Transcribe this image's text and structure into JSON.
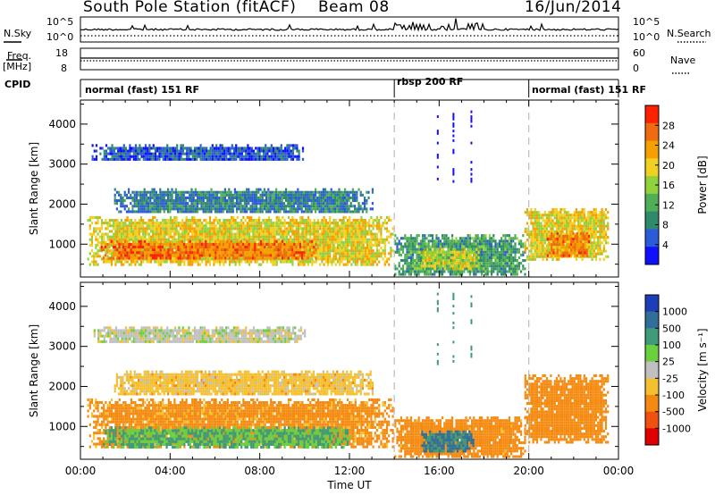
{
  "header": {
    "station": "South Pole Station (fitACF)",
    "beam": "Beam 08",
    "date": "16/Jun/2014"
  },
  "side_labels": {
    "nsky": "N.Sky",
    "nsearch": "N.Search",
    "freq": "Freq.",
    "freq_unit": "[MHz]",
    "nave": "Nave",
    "cpid": "CPID"
  },
  "noise_panel": {
    "left_ticks": [
      "10^5",
      "10^0"
    ],
    "right_ticks": [
      "10^5",
      "10^0"
    ]
  },
  "freq_panel": {
    "left_ticks": [
      "18",
      "8"
    ],
    "right_ticks": [
      "60",
      "0"
    ]
  },
  "cpid_panel": {
    "modes": [
      {
        "label": "normal (fast) 151 RF",
        "start_hour": 0,
        "end_hour": 14
      },
      {
        "label": "rbsp 200 RF",
        "start_hour": 14,
        "end_hour": 20
      },
      {
        "label": "normal (fast) 151 RF",
        "start_hour": 20,
        "end_hour": 24
      }
    ]
  },
  "chart_data": [
    {
      "type": "heatmap",
      "name": "power",
      "ylabel": "Slant Range [km]",
      "xlim": [
        0,
        24
      ],
      "ylim": [
        180,
        4600
      ],
      "yticks": [
        "1000",
        "2000",
        "3000",
        "4000"
      ],
      "colorbar": {
        "label": "Power [dB]",
        "ticks": [
          "28",
          "24",
          "20",
          "16",
          "12",
          "8",
          "4"
        ],
        "range": [
          0,
          32
        ],
        "colors": [
          "#1010ff",
          "#2a5bd8",
          "#2f8a6c",
          "#4fae57",
          "#8fd23c",
          "#f0d020",
          "#f5a000",
          "#f06a10",
          "#ff2000"
        ]
      },
      "echo_regions": [
        {
          "t0": 0.3,
          "t1": 13.9,
          "r0": 500,
          "r1": 1700,
          "level": 20
        },
        {
          "t0": 0.9,
          "t1": 10.5,
          "r0": 650,
          "r1": 1100,
          "level": 27
        },
        {
          "t0": 14.0,
          "t1": 19.8,
          "r0": 250,
          "r1": 1250,
          "level": 10
        },
        {
          "t0": 15.0,
          "t1": 17.8,
          "r0": 400,
          "r1": 900,
          "level": 18
        },
        {
          "t0": 19.8,
          "t1": 23.5,
          "r0": 600,
          "r1": 1900,
          "level": 20
        },
        {
          "t0": 20.8,
          "t1": 22.7,
          "r0": 700,
          "r1": 1300,
          "level": 26
        },
        {
          "t0": 1.5,
          "t1": 13.0,
          "r0": 1800,
          "r1": 2400,
          "level": 7
        },
        {
          "t0": 0.5,
          "t1": 10.0,
          "r0": 3100,
          "r1": 3500,
          "level": 4
        }
      ]
    },
    {
      "type": "heatmap",
      "name": "velocity",
      "ylabel": "Slant Range [km]",
      "xlabel": "Time UT",
      "xlim": [
        0,
        24
      ],
      "ylim": [
        180,
        4600
      ],
      "xticks": [
        "00:00",
        "04:00",
        "08:00",
        "12:00",
        "16:00",
        "20:00",
        "00:00"
      ],
      "yticks": [
        "1000",
        "2000",
        "3000",
        "4000"
      ],
      "colorbar": {
        "label": "Velocity [m s⁻¹]",
        "ticks": [
          "1000",
          "500",
          "100",
          "25",
          "-25",
          "-100",
          "-500",
          "-1000"
        ],
        "colors": [
          "#1c3fb8",
          "#2f6f9a",
          "#3e9a78",
          "#6ad040",
          "#c0c0c0",
          "#f5c030",
          "#f58a10",
          "#f05010",
          "#e00000"
        ]
      },
      "echo_regions": [
        {
          "t0": 0.3,
          "t1": 13.9,
          "r0": 500,
          "r1": 1700,
          "velocity": -150
        },
        {
          "t0": 1.0,
          "t1": 12.0,
          "r0": 500,
          "r1": 1000,
          "velocity": 100
        },
        {
          "t0": 14.0,
          "t1": 19.8,
          "r0": 250,
          "r1": 1250,
          "velocity": -200
        },
        {
          "t0": 15.2,
          "t1": 17.5,
          "r0": 400,
          "r1": 900,
          "velocity": 600
        },
        {
          "t0": 19.8,
          "t1": 23.5,
          "r0": 600,
          "r1": 2300,
          "velocity": -250
        },
        {
          "t0": 1.5,
          "t1": 13.0,
          "r0": 1800,
          "r1": 2400,
          "velocity": -60
        },
        {
          "t0": 0.5,
          "t1": 10.0,
          "r0": 3100,
          "r1": 3500,
          "velocity": 0
        }
      ]
    }
  ]
}
